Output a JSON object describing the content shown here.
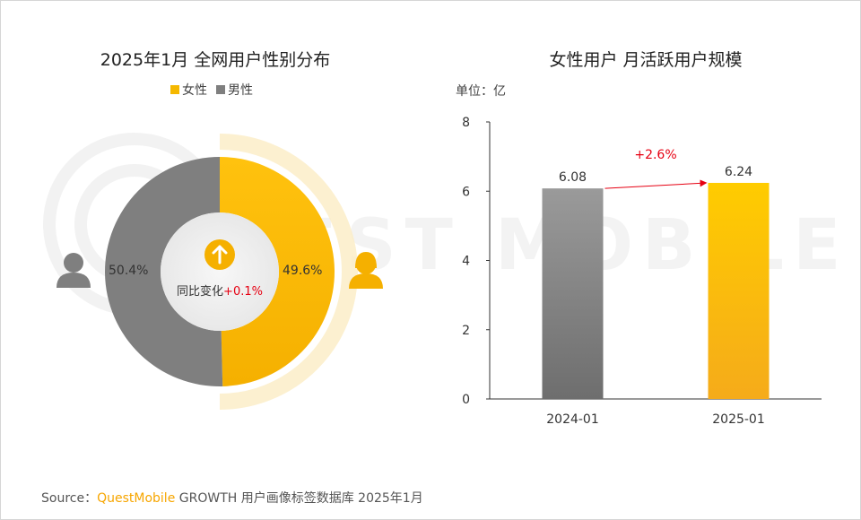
{
  "left_chart": {
    "title": "2025年1月 全网用户性别分布",
    "legend": [
      {
        "label": "女性",
        "color": "#f5b800"
      },
      {
        "label": "男性",
        "color": "#7f7f7f"
      }
    ],
    "yoy_label": "同比变化",
    "yoy_value": "+0.1%",
    "female_icon": "female-user-icon",
    "male_icon": "male-user-icon",
    "arrow_icon": "arrow-up-icon"
  },
  "right_chart": {
    "title": "女性用户 月活跃用户规模",
    "unit": "单位：亿",
    "growth_label": "+2.6%"
  },
  "chart_data": [
    {
      "type": "pie",
      "title": "2025年1月 全网用户性别分布",
      "slices": [
        {
          "name": "女性",
          "value": 49.6,
          "label": "49.6%",
          "color": "#f5b800"
        },
        {
          "name": "男性",
          "value": 50.4,
          "label": "50.4%",
          "color": "#7f7f7f"
        }
      ],
      "legend_position": "top"
    },
    {
      "type": "bar",
      "title": "女性用户 月活跃用户规模",
      "categories": [
        "2024-01",
        "2025-01"
      ],
      "values": [
        6.08,
        6.24
      ],
      "value_labels": [
        "6.08",
        "6.24"
      ],
      "colors": [
        "#7f7f7f",
        "#f5b800"
      ],
      "ylim": [
        0,
        8
      ],
      "yticks": [
        "0",
        "2",
        "4",
        "6",
        "8"
      ],
      "ylabel": "单位：亿",
      "annotation": "+2.6%"
    }
  ],
  "source": {
    "prefix": "Source：",
    "brand": "QuestMobile",
    "rest": " GROWTH 用户画像标签数据库 2025年1月"
  },
  "colors": {
    "female": "#f5b800",
    "male": "#7f7f7f",
    "accent_red": "#e60012"
  }
}
